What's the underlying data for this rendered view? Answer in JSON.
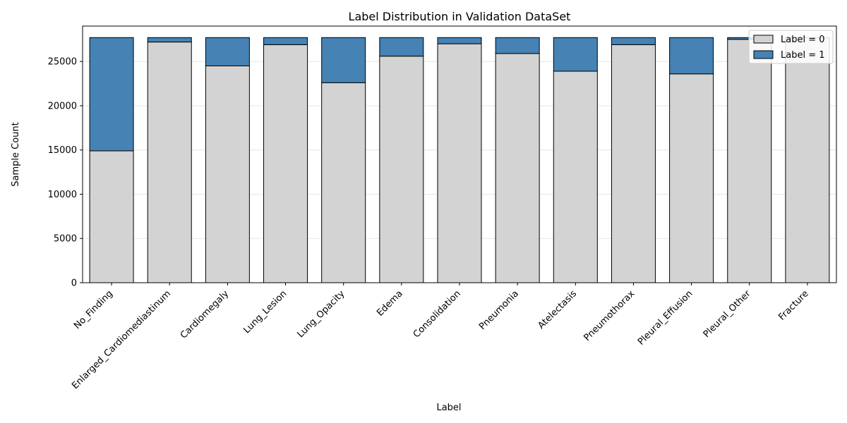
{
  "chart_data": {
    "type": "bar",
    "stacked": true,
    "title": "Label Distribution in Validation DataSet",
    "xlabel": "Label",
    "ylabel": "Sample Count",
    "ylim": [
      0,
      29000
    ],
    "yticks": [
      0,
      5000,
      10000,
      15000,
      20000,
      25000
    ],
    "grid": "y",
    "legend_position": "top-right",
    "categories": [
      "No_Finding",
      "Enlarged_Cardiomediastinum",
      "Cardiomegaly",
      "Lung_Lesion",
      "Lung_Opacity",
      "Edema",
      "Consolidation",
      "Pneumonia",
      "Atelectasis",
      "Pneumothorax",
      "Pleural_Effusion",
      "Pleural_Other",
      "Fracture"
    ],
    "series": [
      {
        "name": "Label = 0",
        "color": "#d3d3d3",
        "values": [
          14900,
          27200,
          24500,
          26900,
          22600,
          25600,
          27000,
          25900,
          23900,
          26900,
          23600,
          27500,
          27700
        ]
      },
      {
        "name": "Label = 1",
        "color": "#4682b4",
        "values": [
          12800,
          500,
          3200,
          800,
          5100,
          2100,
          700,
          1800,
          3800,
          800,
          4100,
          200,
          0
        ]
      }
    ]
  }
}
